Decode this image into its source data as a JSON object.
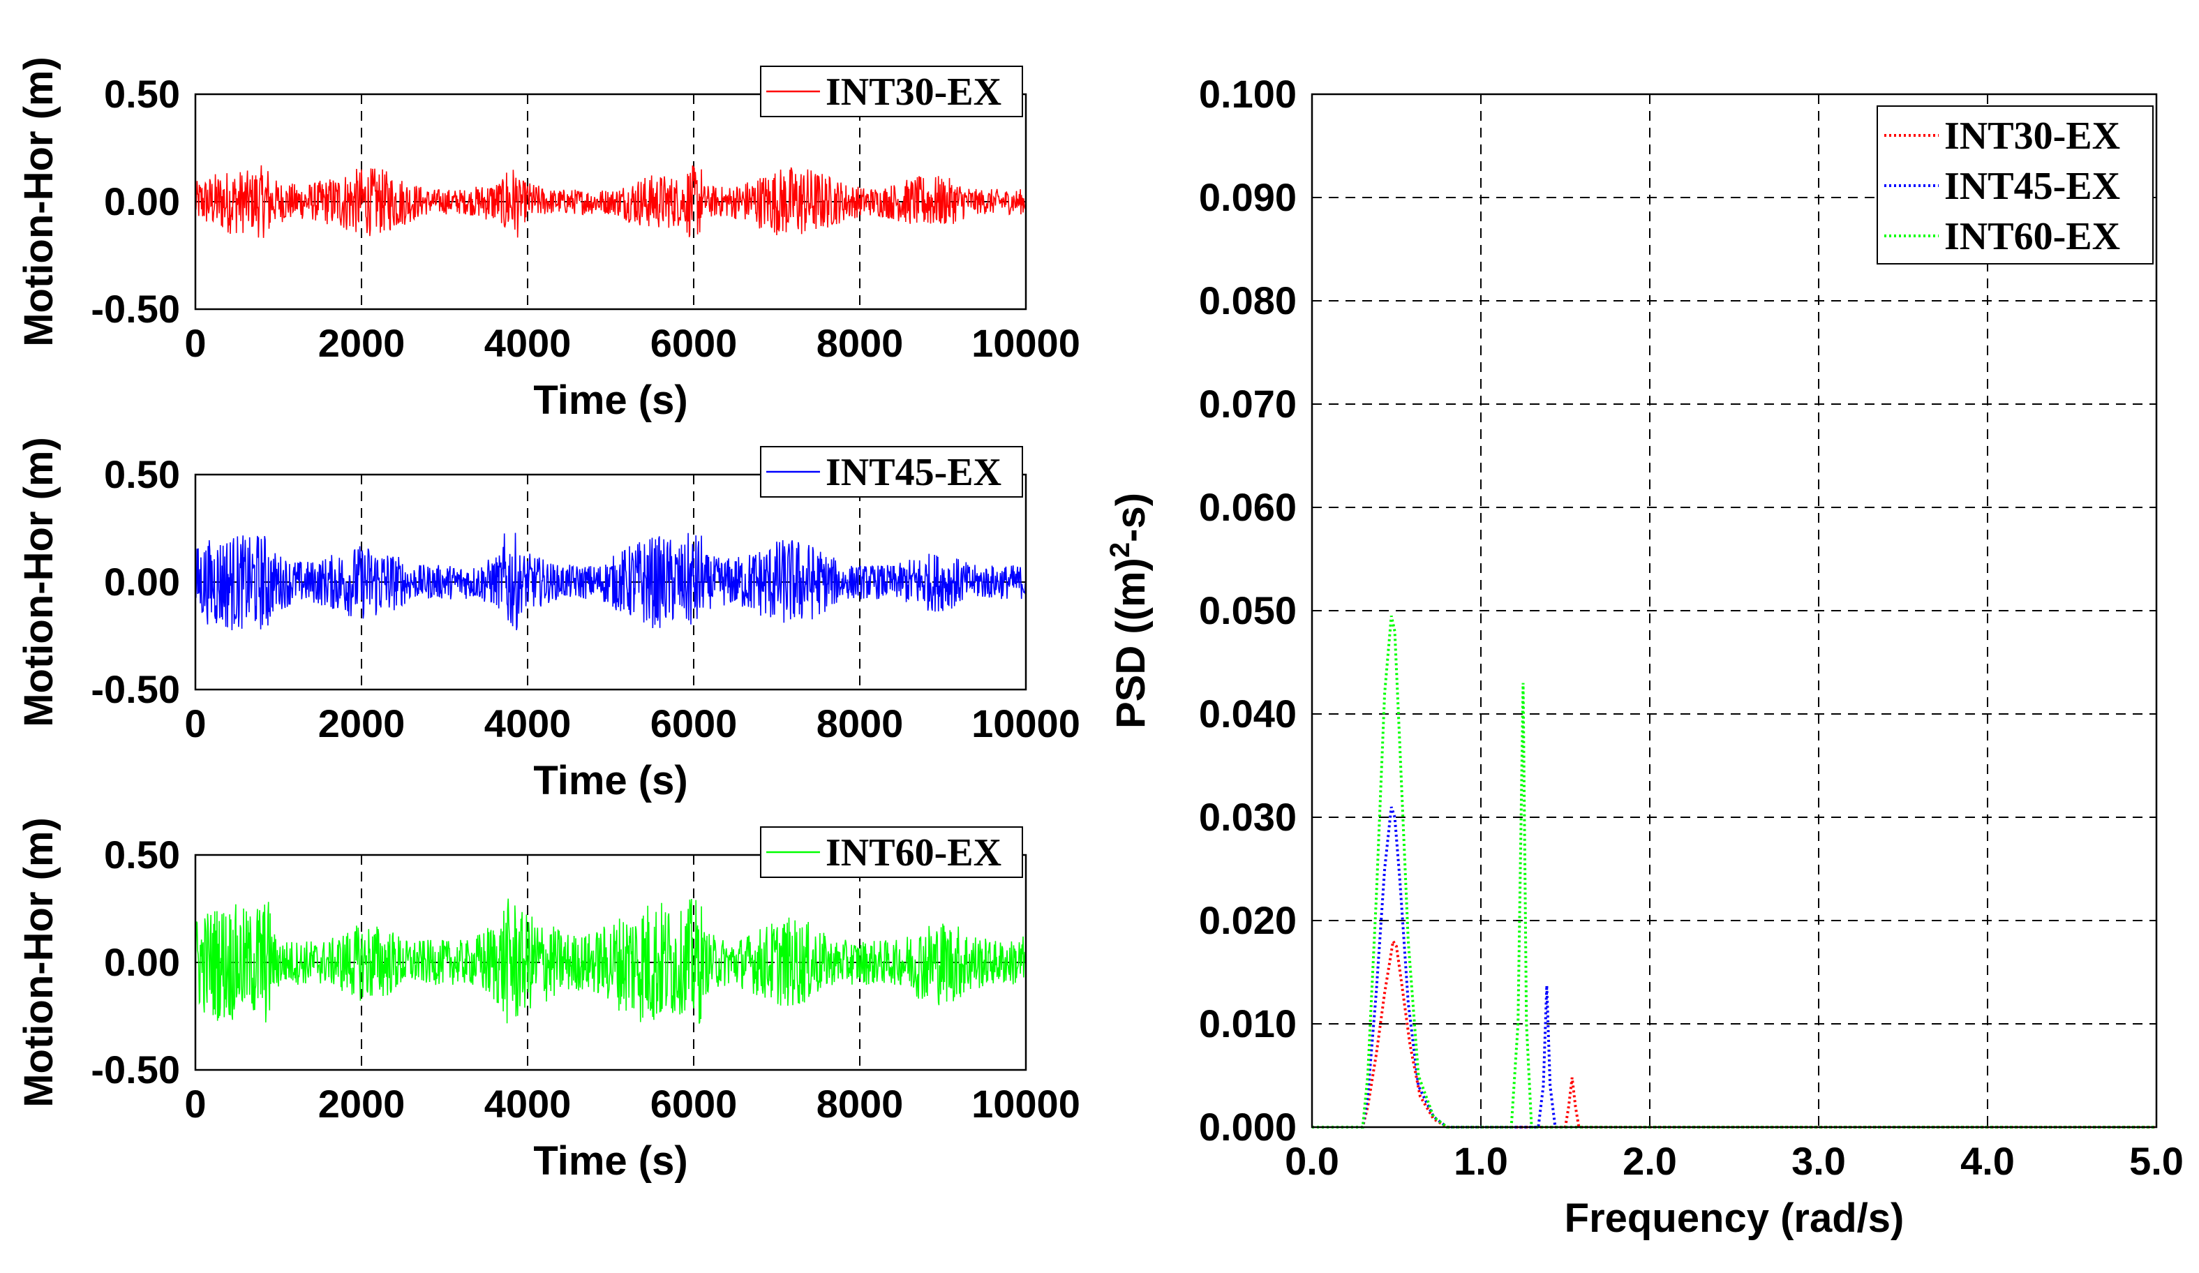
{
  "chart_data": [
    {
      "type": "line",
      "id": "ts1",
      "series": [
        {
          "name": "INT30-EX",
          "color": "#ff0000",
          "amplitude": 0.17
        }
      ],
      "xlabel": "Time (s)",
      "ylabel": "Motion-Hor (m)",
      "xlim": [
        0,
        10000
      ],
      "ylim": [
        -0.5,
        0.5
      ],
      "xticks": [
        "0",
        "2000",
        "4000",
        "6000",
        "8000",
        "10000"
      ],
      "yticks": [
        "-0.50",
        "0.00",
        "0.50"
      ],
      "grid": true,
      "legend": "top-right"
    },
    {
      "type": "line",
      "id": "ts2",
      "series": [
        {
          "name": "INT45-EX",
          "color": "#0000ff",
          "amplitude": 0.23
        }
      ],
      "xlabel": "Time (s)",
      "ylabel": "Motion-Hor (m)",
      "xlim": [
        0,
        10000
      ],
      "ylim": [
        -0.5,
        0.5
      ],
      "xticks": [
        "0",
        "2000",
        "4000",
        "6000",
        "8000",
        "10000"
      ],
      "yticks": [
        "-0.50",
        "0.00",
        "0.50"
      ],
      "grid": true,
      "legend": "top-right"
    },
    {
      "type": "line",
      "id": "ts3",
      "series": [
        {
          "name": "INT60-EX",
          "color": "#00ff00",
          "amplitude": 0.3
        }
      ],
      "xlabel": "Time (s)",
      "ylabel": "Motion-Hor (m)",
      "xlim": [
        0,
        10000
      ],
      "ylim": [
        -0.5,
        0.5
      ],
      "xticks": [
        "0",
        "2000",
        "4000",
        "6000",
        "8000",
        "10000"
      ],
      "yticks": [
        "-0.50",
        "0.00",
        "0.50"
      ],
      "grid": true,
      "legend": "top-right"
    },
    {
      "type": "line",
      "id": "psd",
      "xlabel": "Frequency (rad/s)",
      "ylabel_pre": "PSD ((m)",
      "ylabel_sup": "2",
      "ylabel_post": "-s)",
      "xlim": [
        0,
        5
      ],
      "ylim": [
        0,
        0.1
      ],
      "xticks": [
        "0.0",
        "1.0",
        "2.0",
        "3.0",
        "4.0",
        "5.0"
      ],
      "yticks": [
        "0.000",
        "0.010",
        "0.020",
        "0.030",
        "0.040",
        "0.050",
        "0.060",
        "0.070",
        "0.080",
        "0.090",
        "0.100"
      ],
      "grid": true,
      "legend": "top-right",
      "series": [
        {
          "name": "INT30-EX",
          "color": "#ff0000",
          "x": [
            0,
            0.3,
            0.33,
            0.38,
            0.43,
            0.48,
            0.5,
            0.53,
            0.58,
            0.64,
            0.72,
            0.8,
            1.5,
            1.52,
            1.54,
            1.56,
            1.58,
            5.0
          ],
          "y": [
            0,
            0,
            0.002,
            0.007,
            0.013,
            0.018,
            0.0175,
            0.014,
            0.008,
            0.003,
            0.0008,
            0,
            0,
            0.002,
            0.0048,
            0.002,
            0,
            0
          ]
        },
        {
          "name": "INT45-EX",
          "color": "#0000ff",
          "x": [
            0,
            0.3,
            0.33,
            0.38,
            0.43,
            0.47,
            0.49,
            0.52,
            0.57,
            0.63,
            0.72,
            0.8,
            1.34,
            1.37,
            1.39,
            1.41,
            1.44,
            5.0
          ],
          "y": [
            0,
            0,
            0.003,
            0.013,
            0.025,
            0.031,
            0.03,
            0.024,
            0.012,
            0.004,
            0.001,
            0,
            0,
            0.004,
            0.0137,
            0.004,
            0,
            0
          ]
        },
        {
          "name": "INT60-EX",
          "color": "#00ff00",
          "x": [
            0,
            0.3,
            0.33,
            0.38,
            0.43,
            0.47,
            0.49,
            0.52,
            0.57,
            0.63,
            0.72,
            0.8,
            1.18,
            1.22,
            1.25,
            1.27,
            1.3,
            5.0
          ],
          "y": [
            0,
            0,
            0.005,
            0.022,
            0.042,
            0.0495,
            0.048,
            0.037,
            0.018,
            0.005,
            0.001,
            0,
            0,
            0.01,
            0.043,
            0.01,
            0,
            0
          ]
        }
      ]
    }
  ]
}
